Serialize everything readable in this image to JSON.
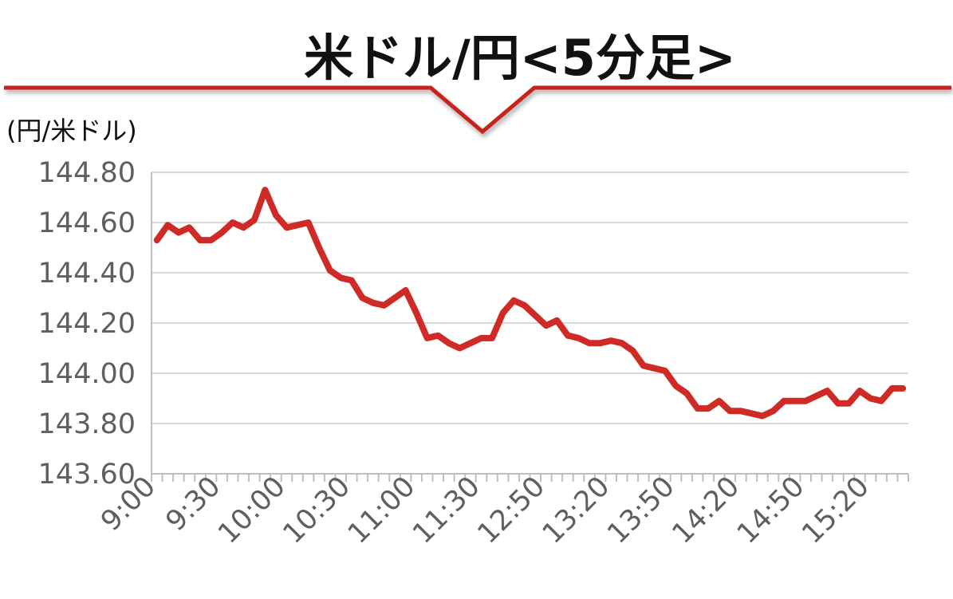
{
  "chart_data": {
    "type": "line",
    "title": "米ドル/円<5分足>",
    "ylabel": "(円/米ドル)",
    "ylim": [
      143.6,
      144.8
    ],
    "yticks": [
      "144.80",
      "144.60",
      "144.40",
      "144.20",
      "144.00",
      "143.80",
      "143.60"
    ],
    "xtick_labels": [
      "9:00",
      "9:30",
      "10:00",
      "10:30",
      "11:00",
      "11:30",
      "12:50",
      "13:20",
      "13:50",
      "14:20",
      "14:50",
      "15:20"
    ],
    "xtick_label_every": 6,
    "grid": true,
    "legend": "none",
    "series": [
      {
        "color": "#d02a27",
        "values": [
          144.53,
          144.59,
          144.56,
          144.58,
          144.53,
          144.53,
          144.56,
          144.6,
          144.58,
          144.61,
          144.73,
          144.63,
          144.58,
          144.59,
          144.6,
          144.5,
          144.41,
          144.38,
          144.37,
          144.3,
          144.28,
          144.27,
          144.3,
          144.33,
          144.24,
          144.14,
          144.15,
          144.12,
          144.1,
          144.12,
          144.14,
          144.14,
          144.24,
          144.29,
          144.27,
          144.23,
          144.19,
          144.21,
          144.15,
          144.14,
          144.12,
          144.12,
          144.13,
          144.12,
          144.09,
          144.03,
          144.02,
          144.01,
          143.95,
          143.92,
          143.86,
          143.86,
          143.89,
          143.85,
          143.85,
          143.84,
          143.83,
          143.85,
          143.89,
          143.89,
          143.89,
          143.91,
          143.93,
          143.88,
          143.88,
          143.93,
          143.9,
          143.89,
          143.94,
          143.94
        ]
      }
    ]
  },
  "colors": {
    "accent_red": "#c8201d",
    "line_red": "#d02a27",
    "axis_text": "#5f5f5f",
    "gridline": "#d9d9d9"
  }
}
